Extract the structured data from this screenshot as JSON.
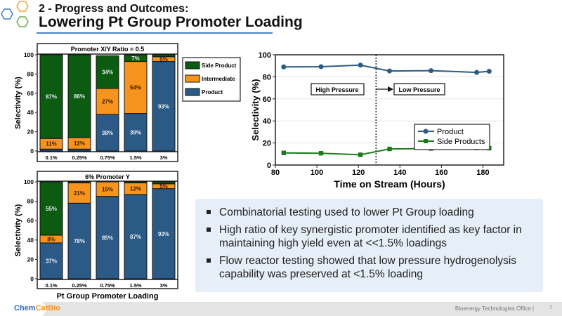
{
  "header": {
    "subtitle": "2 - Progress and Outcomes:",
    "title": "Lowering Pt Group Promoter Loading"
  },
  "footer": {
    "brand_a": "Chem",
    "brand_b": "CatBio",
    "office": "Bioenergy Technologies Office |",
    "page": "7"
  },
  "bullets": [
    "Combinatorial testing used to lower Pt Group loading",
    "High ratio of key synergistic promoter identified as key factor in maintaining high yield even at <<1.5% loadings",
    "Flow reactor testing showed that low pressure hydrogenolysis capability was preserved at <1.5% loading"
  ],
  "chart_data": [
    {
      "type": "bar",
      "stacked": true,
      "title": "Promoter X/Y Ratio = 0.5",
      "ylabel": "Selectivity (%)",
      "xlabel": "",
      "ylim": [
        0,
        100
      ],
      "yticks": [
        "0",
        "20",
        "40",
        "60",
        "80",
        "100"
      ],
      "categories": [
        "0.1%",
        "0.25%",
        "0.75%",
        "1.5%",
        "3%"
      ],
      "series": [
        {
          "name": "Product",
          "color": "#2b5a86",
          "values": [
            2,
            2,
            38,
            39,
            93
          ],
          "labels": [
            null,
            null,
            "38%",
            "39%",
            "93%"
          ]
        },
        {
          "name": "Intermediate",
          "color": "#f7941d",
          "values": [
            11,
            12,
            27,
            54,
            5
          ],
          "labels": [
            "11%",
            "12%",
            "27%",
            "54%",
            "5%"
          ]
        },
        {
          "name": "Side Product",
          "color": "#0b5b10",
          "values": [
            87,
            86,
            34,
            7,
            2
          ],
          "labels": [
            "87%",
            "86%",
            "34%",
            "7%",
            null
          ]
        }
      ],
      "legend": [
        "Side Product",
        "Intermediate",
        "Product"
      ],
      "legend_position": "right"
    },
    {
      "type": "bar",
      "stacked": true,
      "title": "6% Promoter Y",
      "ylabel": "Selectivity (%)",
      "xlabel": "Pt Group Promoter Loading",
      "ylim": [
        0,
        100
      ],
      "yticks": [
        "0",
        "20",
        "40",
        "60",
        "80",
        "100"
      ],
      "categories": [
        "0.1%",
        "0.25%",
        "0.75%",
        "1.5%",
        "3%"
      ],
      "series": [
        {
          "name": "Product",
          "color": "#2b5a86",
          "values": [
            37,
            78,
            85,
            87,
            93
          ],
          "labels": [
            "37%",
            "78%",
            "85%",
            "87%",
            "93%"
          ]
        },
        {
          "name": "Intermediate",
          "color": "#f7941d",
          "values": [
            8,
            21,
            15,
            12,
            5
          ],
          "labels": [
            "8%",
            "21%",
            "15%",
            "12%",
            "5%"
          ]
        },
        {
          "name": "Side Product",
          "color": "#0b5b10",
          "values": [
            55,
            1,
            0,
            1,
            2
          ],
          "labels": [
            "55%",
            null,
            null,
            null,
            null
          ]
        }
      ]
    },
    {
      "type": "line",
      "title": "",
      "xlabel": "Time on Stream (Hours)",
      "ylabel": "Selectivity (%)",
      "xlim": [
        80,
        190
      ],
      "ylim": [
        0,
        100
      ],
      "xticks": [
        "80",
        "100",
        "120",
        "140",
        "160",
        "180"
      ],
      "yticks": [
        "0",
        "20",
        "40",
        "60",
        "80",
        "100"
      ],
      "x": [
        84,
        102,
        121,
        135,
        155,
        177,
        183
      ],
      "series": [
        {
          "name": "Product",
          "color": "#2b5a86",
          "marker": "circle",
          "values": [
            89,
            89.2,
            90.6,
            85.3,
            85.6,
            84,
            85
          ]
        },
        {
          "name": "Side Products",
          "color": "#1a7a1a",
          "marker": "square",
          "values": [
            11,
            10.7,
            9.3,
            14.6,
            15,
            15.4,
            15.3
          ]
        }
      ],
      "divider_x": 128.5,
      "annotations": [
        "High Pressure",
        "Low Pressure"
      ],
      "legend_position": "center-right"
    }
  ]
}
